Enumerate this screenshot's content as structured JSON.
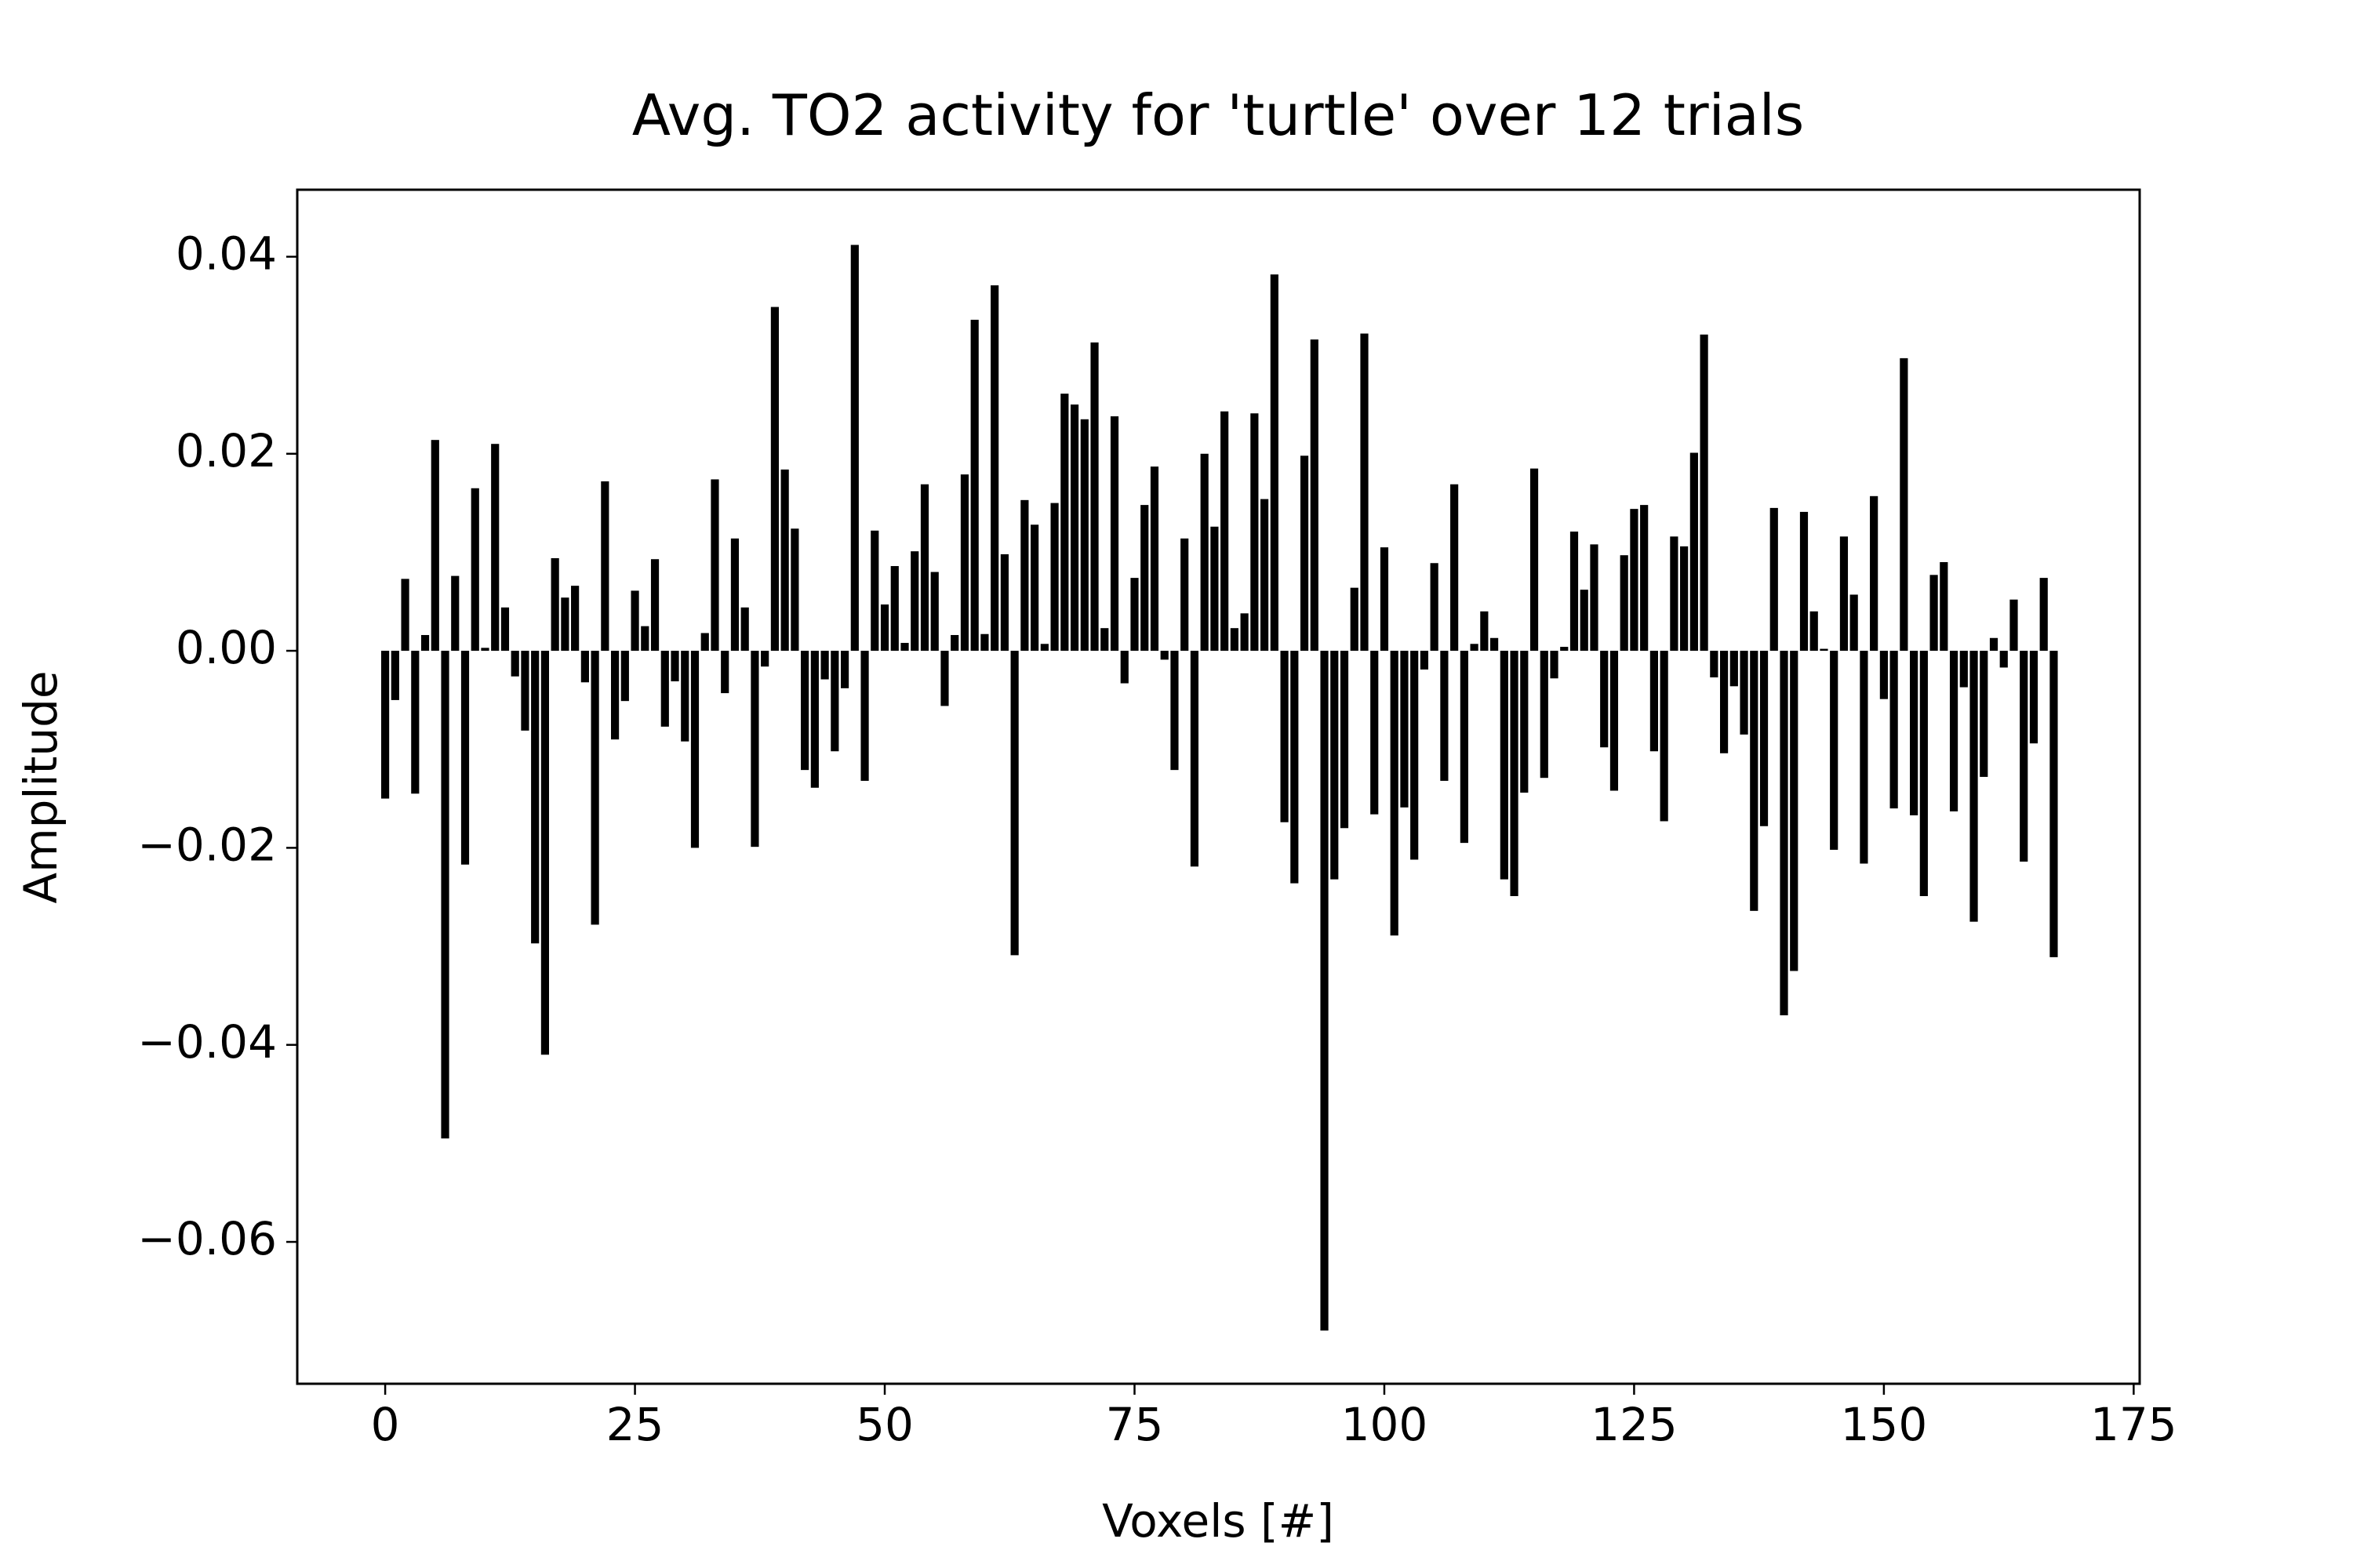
{
  "chart_data": {
    "type": "bar",
    "title": "Avg. TO2 activity for 'turtle' over 12 trials",
    "xlabel": "Voxels [#]",
    "ylabel": "Amplitude",
    "color": "#000000",
    "x": [
      0,
      1,
      2,
      3,
      4,
      5,
      6,
      7,
      8,
      9,
      10,
      11,
      12,
      13,
      14,
      15,
      16,
      17,
      18,
      19,
      20,
      21,
      22,
      23,
      24,
      25,
      26,
      27,
      28,
      29,
      30,
      31,
      32,
      33,
      34,
      35,
      36,
      37,
      38,
      39,
      40,
      41,
      42,
      43,
      44,
      45,
      46,
      47,
      48,
      49,
      50,
      51,
      52,
      53,
      54,
      55,
      56,
      57,
      58,
      59,
      60,
      61,
      62,
      63,
      64,
      65,
      66,
      67,
      68,
      69,
      70,
      71,
      72,
      73,
      74,
      75,
      76,
      77,
      78,
      79,
      80,
      81,
      82,
      83,
      84,
      85,
      86,
      87,
      88,
      89,
      90,
      91,
      92,
      93,
      94,
      95,
      96,
      97,
      98,
      99,
      100,
      101,
      102,
      103,
      104,
      105,
      106,
      107,
      108,
      109,
      110,
      111,
      112,
      113,
      114,
      115,
      116,
      117,
      118,
      119,
      120,
      121,
      122,
      123,
      124,
      125,
      126,
      127,
      128,
      129,
      130,
      131,
      132,
      133,
      134,
      135,
      136,
      137,
      138,
      139,
      140,
      141,
      142,
      143,
      144,
      145,
      146,
      147,
      148,
      149,
      150,
      151,
      152,
      153,
      154,
      155,
      156,
      157,
      158,
      159,
      160,
      161,
      162,
      163,
      164,
      165,
      166,
      167
    ],
    "values": [
      -0.015,
      -0.005,
      0.0073,
      -0.0145,
      0.0016,
      0.0214,
      -0.0495,
      0.0076,
      -0.0217,
      0.0165,
      0.0003,
      0.021,
      0.0044,
      -0.0026,
      -0.0081,
      -0.0297,
      -0.041,
      0.0094,
      0.0054,
      0.0066,
      -0.0032,
      -0.0278,
      0.0172,
      -0.009,
      -0.0051,
      0.0061,
      0.0025,
      0.0093,
      -0.0077,
      -0.0031,
      -0.0092,
      -0.02,
      0.0018,
      0.0174,
      -0.0043,
      0.0114,
      0.0044,
      -0.0199,
      -0.0016,
      0.0349,
      0.0184,
      0.0124,
      -0.0121,
      -0.0139,
      -0.0029,
      -0.0102,
      -0.0038,
      0.0412,
      -0.0132,
      0.0122,
      0.0047,
      0.0086,
      0.0008,
      0.0101,
      0.0169,
      0.008,
      -0.0056,
      0.0016,
      0.0179,
      0.0336,
      0.0017,
      0.0371,
      0.0098,
      -0.0309,
      0.0153,
      0.0128,
      0.0007,
      0.015,
      0.0261,
      0.025,
      0.0235,
      0.0313,
      0.0023,
      0.0238,
      -0.0033,
      0.0074,
      0.0148,
      0.0187,
      -0.0009,
      -0.0121,
      0.0114,
      -0.0219,
      0.02,
      0.0126,
      0.0243,
      0.0023,
      0.0038,
      0.0241,
      0.0154,
      0.0382,
      -0.0174,
      -0.0236,
      0.0198,
      0.0316,
      -0.069,
      -0.0232,
      -0.018,
      0.0064,
      0.0322,
      -0.0166,
      0.0105,
      -0.0289,
      -0.0159,
      -0.0212,
      -0.0019,
      0.0089,
      -0.0132,
      0.0169,
      -0.0195,
      0.0007,
      0.004,
      0.0013,
      -0.0232,
      -0.0249,
      -0.0144,
      0.0185,
      -0.0129,
      -0.0028,
      0.0004,
      0.0121,
      0.0062,
      0.0108,
      -0.0098,
      -0.0142,
      0.0097,
      0.0144,
      0.0148,
      -0.0102,
      -0.0173,
      0.0116,
      0.0106,
      0.0201,
      0.0321,
      -0.0027,
      -0.0104,
      -0.0036,
      -0.0085,
      -0.0264,
      -0.0178,
      0.0145,
      -0.037,
      -0.0325,
      0.0141,
      0.004,
      0.0002,
      -0.0202,
      0.0116,
      0.0057,
      -0.0216,
      0.0157,
      -0.0049,
      -0.016,
      0.0297,
      -0.0167,
      -0.0249,
      0.0077,
      0.009,
      -0.0163,
      -0.0037,
      -0.0275,
      -0.0128,
      0.0013,
      -0.0017,
      0.0052,
      -0.0214,
      -0.0094,
      0.0074,
      -0.0311
    ],
    "xlim": [
      -8.8,
      175.6
    ],
    "xticks": [
      0,
      25,
      50,
      75,
      100,
      125,
      150,
      175
    ],
    "ylim": [
      -0.0744,
      0.0468
    ],
    "yticks": [
      {
        "value": -0.06,
        "label": "−0.06"
      },
      {
        "value": -0.04,
        "label": "−0.04"
      },
      {
        "value": -0.02,
        "label": "−0.02"
      },
      {
        "value": 0,
        "label": "0.00"
      },
      {
        "value": 0.02,
        "label": "0.02"
      },
      {
        "value": 0.04,
        "label": "0.04"
      }
    ],
    "grid": false
  }
}
